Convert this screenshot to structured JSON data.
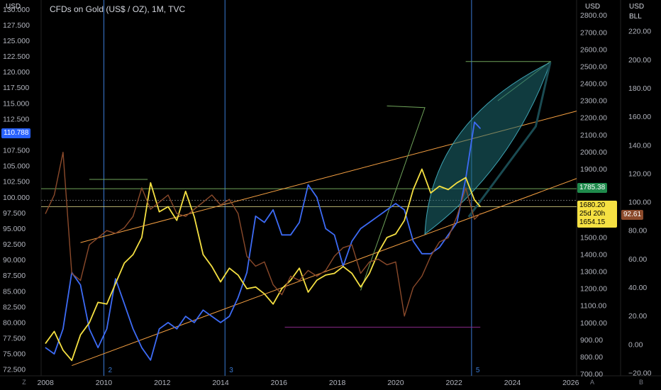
{
  "header": {
    "title": "CFDs on Gold (US$ / OZ), 1M, TVC",
    "left_unit": "USD",
    "mid_unit": "USD",
    "right_unit": "USD",
    "right_unit2": "BLL"
  },
  "footer": {
    "left_btn": "Z",
    "mid_btn": "A",
    "right_btn": "B"
  },
  "colors": {
    "gold": "#f5e042",
    "dxy": "#3d6bf5",
    "oil": "#8b4a2b",
    "channel": "#f7a142",
    "fib_line": "#6fa35a",
    "cone_fill": "#1e6b73",
    "vline": "#3a7bd5",
    "badge_blue": "#2962ff",
    "badge_green": "#1f8a4c",
    "badge_yellow": "#f5e042",
    "badge_brown": "#8b4a2b"
  },
  "badges": {
    "dxy_last": "110.788",
    "green_level": "1785.38",
    "gold_last": "1680.20",
    "countdown": "25d 20h",
    "gold_low": "1654.15",
    "oil_last": "92.61"
  },
  "chart_data": {
    "type": "line",
    "xlim": [
      2007.85,
      2026.2
    ],
    "x_ticks": [
      "2008",
      "2010",
      "2012",
      "2014",
      "2016",
      "2018",
      "2020",
      "2022",
      "2024",
      "2026"
    ],
    "axes": {
      "left": {
        "unit": "USD",
        "ylim": [
          71.5,
          131.5
        ],
        "ticks": [
          "72.500",
          "75.000",
          "77.500",
          "80.000",
          "82.500",
          "85.000",
          "87.500",
          "90.000",
          "92.500",
          "95.000",
          "97.500",
          "100.000",
          "102.500",
          "105.000",
          "107.500",
          "110.000",
          "112.500",
          "115.000",
          "117.500",
          "120.000",
          "122.500",
          "125.000",
          "127.500",
          "130.000"
        ]
      },
      "mid": {
        "unit": "USD",
        "ylim": [
          690,
          2890
        ],
        "ticks": [
          "700.00",
          "800.00",
          "900.00",
          "1000.00",
          "1100.00",
          "1200.00",
          "1300.00",
          "1400.00",
          "1500.00",
          "1600.00",
          "1700.00",
          "1800.00",
          "1900.00",
          "2000.00",
          "2100.00",
          "2200.00",
          "2300.00",
          "2400.00",
          "2500.00",
          "2600.00",
          "2700.00",
          "2800.00"
        ]
      },
      "right": {
        "unit": "USD BLL",
        "ylim": [
          -22,
          242
        ],
        "ticks": [
          "−20.00",
          "0.00",
          "20.00",
          "40.00",
          "60.00",
          "80.00",
          "100.00",
          "120.00",
          "140.00",
          "160.00",
          "180.00",
          "200.00",
          "220.00"
        ]
      }
    },
    "vertical_markers": [
      {
        "x": 2010.0,
        "label": "2"
      },
      {
        "x": 2014.15,
        "label": "3"
      },
      {
        "x": 2022.6,
        "label": "5"
      }
    ],
    "series": [
      {
        "axis": "left",
        "x": [
          2008.0,
          2008.3,
          2008.6,
          2008.9,
          2009.2,
          2009.5,
          2009.8,
          2010.1,
          2010.4,
          2010.7,
          2011.0,
          2011.3,
          2011.6,
          2011.9,
          2012.2,
          2012.5,
          2012.8,
          2013.1,
          2013.4,
          2013.7,
          2014.0,
          2014.3,
          2014.6,
          2014.9,
          2015.2,
          2015.5,
          2015.8,
          2016.1,
          2016.4,
          2016.7,
          2017.0,
          2017.3,
          2017.6,
          2017.9,
          2018.2,
          2018.5,
          2018.8,
          2019.1,
          2019.4,
          2019.7,
          2020.0,
          2020.3,
          2020.6,
          2020.9,
          2021.2,
          2021.5,
          2021.8,
          2022.1,
          2022.4,
          2022.7,
          2022.9
        ],
        "y": [
          76,
          75,
          79,
          88,
          86,
          79,
          76,
          79,
          87,
          83,
          79,
          76,
          74,
          79,
          80,
          79,
          81,
          80,
          82,
          81,
          80,
          81,
          84,
          88,
          97,
          96,
          98,
          94,
          94,
          96,
          102,
          100,
          95,
          94,
          89,
          93,
          95,
          96,
          97,
          98,
          99,
          98,
          93,
          91,
          91,
          92,
          94,
          96,
          103,
          112,
          111
        ]
      },
      {
        "axis": "mid",
        "x": [
          2008.0,
          2008.3,
          2008.6,
          2008.9,
          2009.2,
          2009.5,
          2009.8,
          2010.1,
          2010.4,
          2010.7,
          2011.0,
          2011.3,
          2011.6,
          2011.9,
          2012.2,
          2012.5,
          2012.8,
          2013.1,
          2013.4,
          2013.7,
          2014.0,
          2014.3,
          2014.6,
          2014.9,
          2015.2,
          2015.5,
          2015.8,
          2016.1,
          2016.4,
          2016.7,
          2017.0,
          2017.3,
          2017.6,
          2017.9,
          2018.2,
          2018.5,
          2018.8,
          2019.1,
          2019.4,
          2019.7,
          2020.0,
          2020.3,
          2020.6,
          2020.9,
          2021.2,
          2021.5,
          2021.8,
          2022.1,
          2022.4,
          2022.7,
          2022.9
        ],
        "y": [
          880,
          950,
          840,
          780,
          930,
          1000,
          1120,
          1110,
          1230,
          1350,
          1400,
          1500,
          1820,
          1650,
          1680,
          1600,
          1770,
          1620,
          1400,
          1330,
          1240,
          1320,
          1280,
          1200,
          1210,
          1170,
          1110,
          1200,
          1250,
          1320,
          1180,
          1250,
          1280,
          1290,
          1330,
          1290,
          1210,
          1290,
          1410,
          1500,
          1520,
          1600,
          1780,
          1900,
          1760,
          1800,
          1780,
          1820,
          1850,
          1720,
          1680
        ]
      },
      {
        "axis": "right",
        "x": [
          2008.0,
          2008.3,
          2008.6,
          2008.9,
          2009.2,
          2009.5,
          2009.8,
          2010.1,
          2010.4,
          2010.7,
          2011.0,
          2011.3,
          2011.6,
          2011.9,
          2012.2,
          2012.5,
          2012.8,
          2013.1,
          2013.4,
          2013.7,
          2014.0,
          2014.3,
          2014.6,
          2014.9,
          2015.2,
          2015.5,
          2015.8,
          2016.1,
          2016.4,
          2016.7,
          2017.0,
          2017.3,
          2017.6,
          2017.9,
          2018.2,
          2018.5,
          2018.8,
          2019.1,
          2019.4,
          2019.7,
          2020.0,
          2020.3,
          2020.6,
          2020.9,
          2021.2,
          2021.5,
          2021.8,
          2022.1,
          2022.4,
          2022.7,
          2022.9
        ],
        "y": [
          92,
          105,
          135,
          50,
          45,
          70,
          75,
          80,
          78,
          82,
          90,
          110,
          95,
          100,
          105,
          92,
          90,
          95,
          100,
          105,
          98,
          102,
          92,
          62,
          55,
          58,
          42,
          35,
          48,
          45,
          52,
          48,
          52,
          62,
          68,
          70,
          50,
          58,
          60,
          56,
          58,
          20,
          40,
          48,
          62,
          72,
          75,
          90,
          110,
          88,
          92
        ]
      }
    ]
  }
}
